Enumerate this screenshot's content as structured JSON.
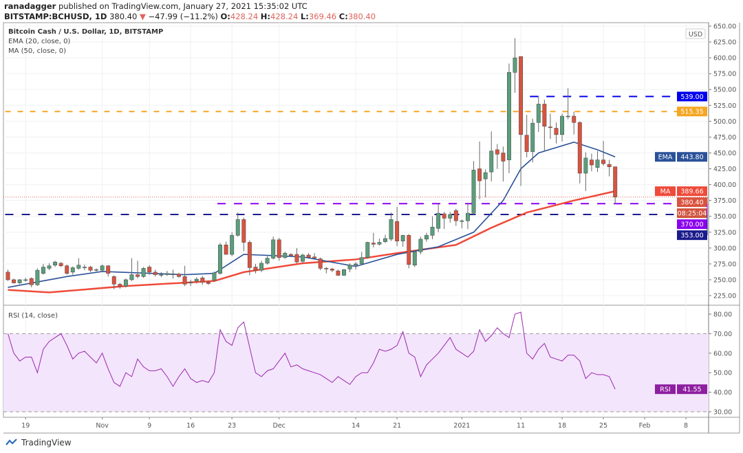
{
  "header": {
    "author": "ranadagger",
    "published_text": "published on TradingView.com, January 27, 2021 15:35:02 UTC",
    "symbol": "BITSTAMP:BCHUSD, 1D",
    "last": "380.40",
    "change": "−47.99 (−11.2%)",
    "o_label": "O:",
    "o": "428.24",
    "h_label": "H:",
    "h": "428.24",
    "l_label": "L:",
    "l": "369.46",
    "c_label": "C:",
    "c": "380.40"
  },
  "legend": {
    "title": "Bitcoin Cash / U.S. Dollar, 1D, BITSTAMP",
    "ema": "EMA (20, close, 0)",
    "ma": "MA (50, close, 0)",
    "rsi": "RSI (14, close)"
  },
  "footer": {
    "brand": "TradingView"
  },
  "colors": {
    "up": "#5b9e7c",
    "down": "#d9533f",
    "ema": "#2a5199",
    "ma": "#ef4a3a",
    "rsi": "#9c27b0",
    "rsi_band": "#f3e5fb"
  },
  "chart_data": [
    {
      "type": "candlestick",
      "currency": "USD",
      "ylim": [
        225,
        650
      ],
      "yticks": [
        "225.00",
        "250.00",
        "275.00",
        "300.00",
        "325.00",
        "350.00",
        "375.00",
        "400.00",
        "425.00",
        "450.00",
        "475.00",
        "500.00",
        "525.00",
        "550.00",
        "575.00",
        "600.00",
        "625.00",
        "650.00"
      ],
      "xticks": [
        {
          "label": "19",
          "date": "2020-10-19"
        },
        {
          "label": "Nov",
          "date": "2020-11-01"
        },
        {
          "label": "9",
          "date": "2020-11-09"
        },
        {
          "label": "16",
          "date": "2020-11-16"
        },
        {
          "label": "23",
          "date": "2020-11-23"
        },
        {
          "label": "Dec",
          "date": "2020-12-01"
        },
        {
          "label": "14",
          "date": "2020-12-14"
        },
        {
          "label": "21",
          "date": "2020-12-21"
        },
        {
          "label": "2021",
          "date": "2021-01-01"
        },
        {
          "label": "11",
          "date": "2021-01-11"
        },
        {
          "label": "18",
          "date": "2021-01-18"
        },
        {
          "label": "25",
          "date": "2021-01-25"
        },
        {
          "label": "Feb",
          "date": "2021-02-01"
        },
        {
          "label": "8",
          "date": "2021-02-08"
        }
      ],
      "grid": true,
      "candles_columns": [
        "date",
        "open",
        "high",
        "low",
        "close"
      ],
      "candles": [
        [
          "2020-10-16",
          262,
          266,
          248,
          250
        ],
        [
          "2020-10-17",
          250,
          252,
          244,
          245
        ],
        [
          "2020-10-18",
          245,
          251,
          243,
          250
        ],
        [
          "2020-10-19",
          250,
          253,
          247,
          250
        ],
        [
          "2020-10-20",
          252,
          254,
          238,
          242
        ],
        [
          "2020-10-21",
          242,
          268,
          240,
          265
        ],
        [
          "2020-10-22",
          260,
          275,
          258,
          270
        ],
        [
          "2020-10-23",
          268,
          276,
          265,
          272
        ],
        [
          "2020-10-24",
          273,
          280,
          270,
          278
        ],
        [
          "2020-10-25",
          276,
          278,
          270,
          272
        ],
        [
          "2020-10-26",
          272,
          274,
          258,
          260
        ],
        [
          "2020-10-27",
          262,
          271,
          258,
          269
        ],
        [
          "2020-10-28",
          268,
          284,
          266,
          273
        ],
        [
          "2020-10-29",
          270,
          274,
          265,
          270
        ],
        [
          "2020-10-30",
          270,
          272,
          262,
          265
        ],
        [
          "2020-10-31",
          266,
          268,
          263,
          266
        ],
        [
          "2020-11-01",
          265,
          274,
          263,
          272
        ],
        [
          "2020-11-02",
          272,
          273,
          255,
          260
        ],
        [
          "2020-11-03",
          255,
          257,
          235,
          243
        ],
        [
          "2020-11-04",
          243,
          245,
          236,
          240
        ],
        [
          "2020-11-05",
          240,
          252,
          238,
          250
        ],
        [
          "2020-11-06",
          250,
          284,
          248,
          258
        ],
        [
          "2020-11-07",
          258,
          280,
          252,
          255
        ],
        [
          "2020-11-08",
          255,
          270,
          253,
          268
        ],
        [
          "2020-11-09",
          270,
          273,
          258,
          262
        ],
        [
          "2020-11-10",
          262,
          266,
          255,
          258
        ],
        [
          "2020-11-11",
          258,
          262,
          254,
          258
        ],
        [
          "2020-11-12",
          258,
          264,
          256,
          260
        ],
        [
          "2020-11-13",
          259,
          266,
          252,
          259
        ],
        [
          "2020-11-14",
          259,
          261,
          253,
          255
        ],
        [
          "2020-11-15",
          255,
          272,
          240,
          243
        ],
        [
          "2020-11-16",
          246,
          250,
          240,
          246
        ],
        [
          "2020-11-17",
          248,
          254,
          244,
          251
        ],
        [
          "2020-11-18",
          253,
          256,
          242,
          246
        ],
        [
          "2020-11-19",
          246,
          248,
          242,
          244
        ],
        [
          "2020-11-20",
          249,
          263,
          247,
          261
        ],
        [
          "2020-11-21",
          260,
          308,
          258,
          305
        ],
        [
          "2020-11-22",
          305,
          310,
          290,
          290
        ],
        [
          "2020-11-23",
          290,
          325,
          287,
          320
        ],
        [
          "2020-11-24",
          320,
          356,
          318,
          345
        ],
        [
          "2020-11-25",
          345,
          348,
          295,
          309
        ],
        [
          "2020-11-26",
          309,
          312,
          257,
          269
        ],
        [
          "2020-11-27",
          270,
          275,
          260,
          265
        ],
        [
          "2020-11-28",
          265,
          280,
          262,
          276
        ],
        [
          "2020-11-29",
          276,
          287,
          274,
          284
        ],
        [
          "2020-11-30",
          284,
          318,
          282,
          313
        ],
        [
          "2020-12-01",
          313,
          316,
          280,
          285
        ],
        [
          "2020-12-02",
          285,
          294,
          283,
          292
        ],
        [
          "2020-12-03",
          290,
          292,
          286,
          288
        ],
        [
          "2020-12-04",
          290,
          300,
          276,
          278
        ],
        [
          "2020-12-05",
          279,
          291,
          276,
          289
        ],
        [
          "2020-12-06",
          289,
          292,
          284,
          285
        ],
        [
          "2020-12-07",
          286,
          292,
          283,
          284
        ],
        [
          "2020-12-08",
          283,
          285,
          265,
          268
        ],
        [
          "2020-12-09",
          268,
          270,
          260,
          267
        ],
        [
          "2020-12-10",
          267,
          269,
          262,
          265
        ],
        [
          "2020-12-11",
          264,
          266,
          256,
          257
        ],
        [
          "2020-12-12",
          257,
          267,
          256,
          266
        ],
        [
          "2020-12-13",
          267,
          276,
          262,
          273
        ],
        [
          "2020-12-14",
          273,
          278,
          266,
          275
        ],
        [
          "2020-12-15",
          275,
          294,
          273,
          285
        ],
        [
          "2020-12-16",
          285,
          310,
          283,
          309
        ],
        [
          "2020-12-17",
          308,
          324,
          301,
          306
        ],
        [
          "2020-12-18",
          306,
          315,
          304,
          309
        ],
        [
          "2020-12-19",
          310,
          321,
          308,
          315
        ],
        [
          "2020-12-20",
          314,
          356,
          311,
          345
        ],
        [
          "2020-12-21",
          342,
          365,
          303,
          311
        ],
        [
          "2020-12-22",
          311,
          321,
          302,
          320
        ],
        [
          "2020-12-23",
          320,
          322,
          268,
          274
        ],
        [
          "2020-12-24",
          273,
          296,
          270,
          294
        ],
        [
          "2020-12-25",
          294,
          318,
          290,
          314
        ],
        [
          "2020-12-26",
          314,
          324,
          310,
          320
        ],
        [
          "2020-12-27",
          320,
          350,
          314,
          333
        ],
        [
          "2020-12-28",
          331,
          370,
          325,
          355
        ],
        [
          "2020-12-29",
          354,
          357,
          330,
          347
        ],
        [
          "2020-12-30",
          347,
          357,
          340,
          353
        ],
        [
          "2020-12-31",
          359,
          362,
          335,
          343
        ],
        [
          "2021-01-01",
          343,
          345,
          331,
          343
        ],
        [
          "2021-01-02",
          343,
          370,
          330,
          355
        ],
        [
          "2021-01-03",
          355,
          437,
          352,
          423
        ],
        [
          "2021-01-04",
          425,
          468,
          377,
          406
        ],
        [
          "2021-01-05",
          409,
          424,
          380,
          419
        ],
        [
          "2021-01-06",
          420,
          484,
          405,
          453
        ],
        [
          "2021-01-07",
          455,
          464,
          425,
          448
        ],
        [
          "2021-01-08",
          450,
          460,
          405,
          437
        ],
        [
          "2021-01-09",
          439,
          591,
          418,
          577
        ],
        [
          "2021-01-10",
          577,
          631,
          545,
          600
        ],
        [
          "2021-01-11",
          602,
          602,
          398,
          479
        ],
        [
          "2021-01-12",
          478,
          510,
          443,
          452
        ],
        [
          "2021-01-13",
          452,
          504,
          435,
          497
        ],
        [
          "2021-01-14",
          498,
          540,
          483,
          527
        ],
        [
          "2021-01-15",
          527,
          534,
          452,
          492
        ],
        [
          "2021-01-16",
          491,
          512,
          472,
          490
        ],
        [
          "2021-01-17",
          489,
          498,
          465,
          479
        ],
        [
          "2021-01-18",
          479,
          512,
          468,
          508
        ],
        [
          "2021-01-19",
          508,
          552,
          503,
          508
        ],
        [
          "2021-01-20",
          508,
          515,
          479,
          498
        ],
        [
          "2021-01-21",
          498,
          500,
          402,
          418
        ],
        [
          "2021-01-22",
          418,
          451,
          390,
          442
        ],
        [
          "2021-01-23",
          439,
          449,
          421,
          431
        ],
        [
          "2021-01-24",
          427,
          453,
          420,
          439
        ],
        [
          "2021-01-25",
          439,
          469,
          430,
          433
        ],
        [
          "2021-01-26",
          432,
          439,
          413,
          428
        ],
        [
          "2021-01-27",
          428.24,
          428.24,
          369.46,
          380.4
        ]
      ],
      "ema_20": [
        [
          "2020-10-16",
          238
        ],
        [
          "2020-10-26",
          255
        ],
        [
          "2020-11-01",
          263
        ],
        [
          "2020-11-15",
          258
        ],
        [
          "2020-11-20",
          260
        ],
        [
          "2020-11-25",
          290
        ],
        [
          "2020-12-05",
          286
        ],
        [
          "2020-12-14",
          271
        ],
        [
          "2020-12-21",
          290
        ],
        [
          "2020-12-28",
          302
        ],
        [
          "2021-01-03",
          325
        ],
        [
          "2021-01-08",
          375
        ],
        [
          "2021-01-11",
          425
        ],
        [
          "2021-01-14",
          450
        ],
        [
          "2021-01-20",
          467
        ],
        [
          "2021-01-24",
          455
        ],
        [
          "2021-01-27",
          443.8
        ]
      ],
      "ma_50": [
        [
          "2020-10-16",
          234
        ],
        [
          "2020-10-23",
          230
        ],
        [
          "2020-11-05",
          240
        ],
        [
          "2020-11-20",
          248
        ],
        [
          "2020-11-25",
          262
        ],
        [
          "2020-12-05",
          276
        ],
        [
          "2020-12-14",
          282
        ],
        [
          "2020-12-21",
          292
        ],
        [
          "2020-12-31",
          305
        ],
        [
          "2021-01-06",
          332
        ],
        [
          "2021-01-12",
          356
        ],
        [
          "2021-01-20",
          375
        ],
        [
          "2021-01-27",
          389.66
        ]
      ],
      "levels": [
        {
          "value": 539.0,
          "label": "539.00",
          "color": "#0000ee",
          "from": "2021-01-13"
        },
        {
          "value": 515.35,
          "label": "515.35",
          "color": "#f5a623",
          "from": "2020-10-16"
        },
        {
          "value": 370.0,
          "label": "370.00",
          "color": "#8a00ee",
          "from": "2020-11-21"
        },
        {
          "value": 353.0,
          "label": "353.00",
          "color": "#1a1a8c",
          "from": "2020-10-16"
        }
      ],
      "price_tags": {
        "ema": {
          "name": "EMA",
          "value": "443.80"
        },
        "ma": {
          "name": "MA",
          "value": "389.66"
        },
        "last": "380.40",
        "countdown": "08:25:04"
      }
    },
    {
      "type": "line",
      "name": "RSI",
      "ylim": [
        27,
        83
      ],
      "yticks": [
        "30.00",
        "40.00",
        "50.00",
        "60.00",
        "70.00",
        "80.00"
      ],
      "bands": [
        30,
        70
      ],
      "values": [
        70,
        60,
        56,
        58,
        58,
        50,
        62,
        66,
        68,
        70,
        64,
        57,
        60,
        61,
        58,
        55,
        60,
        52,
        45,
        43,
        50,
        48,
        57,
        53,
        51,
        51,
        52,
        48,
        43,
        48,
        52,
        47,
        45,
        46,
        45,
        50,
        72,
        66,
        64,
        73,
        76,
        63,
        50,
        48,
        51,
        52,
        56,
        60,
        53,
        54,
        52,
        51,
        50,
        49,
        47,
        45,
        48,
        46,
        44,
        48,
        50,
        50,
        55,
        62,
        61,
        62,
        64,
        71,
        60,
        58,
        48,
        54,
        57,
        60,
        64,
        68,
        62,
        60,
        58,
        61,
        72,
        66,
        69,
        73,
        70,
        68,
        80,
        81,
        60,
        57,
        62,
        65,
        58,
        57,
        56,
        59,
        59,
        56,
        47,
        50,
        49,
        49,
        48,
        41.55
      ],
      "last": {
        "name": "RSI",
        "value": "41.55"
      }
    }
  ]
}
